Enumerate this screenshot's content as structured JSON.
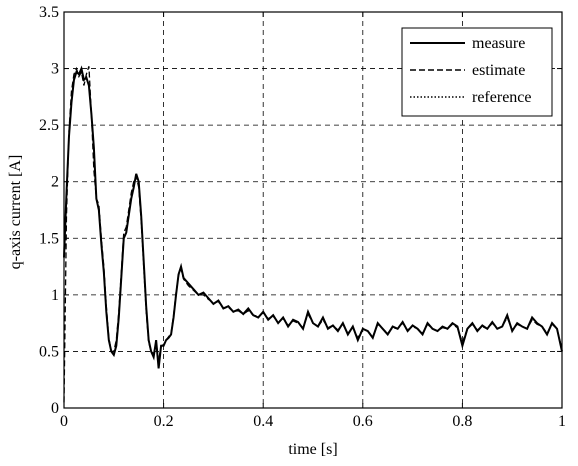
{
  "chart_data": {
    "type": "line",
    "title": "",
    "xlabel": "time [s]",
    "ylabel": "q-axis current [A]",
    "xlim": [
      0,
      1
    ],
    "ylim": [
      0,
      3.5
    ],
    "xticks": [
      0,
      0.2,
      0.4,
      0.6,
      0.8,
      1
    ],
    "xtick_labels": [
      "0",
      "0.2",
      "0.4",
      "0.6",
      "0.8",
      "1"
    ],
    "yticks": [
      0,
      0.5,
      1,
      1.5,
      2,
      2.5,
      3,
      3.5
    ],
    "ytick_labels": [
      "0",
      "0.5",
      "1",
      "1.5",
      "2",
      "2.5",
      "3",
      "3.5"
    ],
    "grid": true,
    "legend_position": "top-right",
    "series": [
      {
        "name": "measure",
        "style": "solid",
        "x": [
          0,
          0.005,
          0.01,
          0.015,
          0.02,
          0.025,
          0.03,
          0.035,
          0.04,
          0.045,
          0.05,
          0.055,
          0.06,
          0.065,
          0.07,
          0.075,
          0.08,
          0.085,
          0.09,
          0.095,
          0.1,
          0.105,
          0.11,
          0.115,
          0.12,
          0.125,
          0.13,
          0.135,
          0.14,
          0.145,
          0.15,
          0.155,
          0.16,
          0.165,
          0.17,
          0.175,
          0.18,
          0.185,
          0.19,
          0.195,
          0.2,
          0.205,
          0.21,
          0.215,
          0.22,
          0.225,
          0.23,
          0.235,
          0.24,
          0.25,
          0.26,
          0.27,
          0.28,
          0.29,
          0.3,
          0.31,
          0.32,
          0.33,
          0.34,
          0.35,
          0.36,
          0.37,
          0.38,
          0.39,
          0.4,
          0.41,
          0.42,
          0.43,
          0.44,
          0.45,
          0.46,
          0.47,
          0.48,
          0.49,
          0.5,
          0.51,
          0.52,
          0.53,
          0.54,
          0.55,
          0.56,
          0.57,
          0.58,
          0.59,
          0.6,
          0.61,
          0.62,
          0.63,
          0.64,
          0.65,
          0.66,
          0.67,
          0.68,
          0.69,
          0.7,
          0.71,
          0.72,
          0.73,
          0.74,
          0.75,
          0.76,
          0.77,
          0.78,
          0.79,
          0.8,
          0.81,
          0.82,
          0.83,
          0.84,
          0.85,
          0.86,
          0.87,
          0.88,
          0.89,
          0.9,
          0.91,
          0.92,
          0.93,
          0.94,
          0.95,
          0.96,
          0.97,
          0.98,
          0.99,
          1
        ],
        "y": [
          1.33,
          1.9,
          2.4,
          2.7,
          2.9,
          2.97,
          2.95,
          3.0,
          2.9,
          2.92,
          2.85,
          2.6,
          2.3,
          1.85,
          1.75,
          1.45,
          1.2,
          0.85,
          0.6,
          0.5,
          0.47,
          0.55,
          0.8,
          1.15,
          1.5,
          1.55,
          1.7,
          1.85,
          1.95,
          2.07,
          2.0,
          1.7,
          1.3,
          0.9,
          0.6,
          0.5,
          0.45,
          0.6,
          0.35,
          0.55,
          0.55,
          0.6,
          0.62,
          0.65,
          0.8,
          1.0,
          1.18,
          1.25,
          1.15,
          1.1,
          1.05,
          1.0,
          1.02,
          0.97,
          0.92,
          0.95,
          0.88,
          0.9,
          0.85,
          0.87,
          0.83,
          0.88,
          0.82,
          0.8,
          0.85,
          0.78,
          0.82,
          0.75,
          0.8,
          0.72,
          0.78,
          0.76,
          0.7,
          0.85,
          0.75,
          0.72,
          0.8,
          0.7,
          0.73,
          0.68,
          0.75,
          0.65,
          0.72,
          0.6,
          0.7,
          0.68,
          0.62,
          0.75,
          0.7,
          0.65,
          0.72,
          0.7,
          0.76,
          0.68,
          0.73,
          0.7,
          0.65,
          0.75,
          0.7,
          0.68,
          0.72,
          0.7,
          0.75,
          0.72,
          0.55,
          0.7,
          0.75,
          0.68,
          0.73,
          0.7,
          0.76,
          0.7,
          0.72,
          0.82,
          0.68,
          0.75,
          0.72,
          0.7,
          0.8,
          0.75,
          0.72,
          0.65,
          0.75,
          0.7,
          0.5
        ]
      },
      {
        "name": "estimate",
        "style": "dashed",
        "x": [
          0,
          0.005,
          0.01,
          0.015,
          0.02,
          0.025,
          0.03,
          0.035,
          0.04,
          0.045,
          0.05,
          0.055,
          0.06,
          0.065,
          0.07,
          0.075,
          0.08,
          0.085,
          0.09,
          0.095,
          0.1,
          0.105,
          0.11,
          0.115,
          0.12,
          0.125,
          0.13,
          0.135,
          0.14,
          0.145,
          0.15,
          0.155,
          0.16,
          0.165,
          0.17,
          0.175,
          0.18,
          0.185,
          0.19,
          0.195,
          0.2,
          0.205,
          0.21,
          0.215,
          0.22,
          0.225,
          0.23,
          0.235,
          0.24,
          0.25,
          0.26,
          0.27,
          0.28,
          0.29,
          0.3,
          0.31,
          0.32,
          0.33,
          0.34,
          0.35,
          0.36,
          0.37,
          0.38,
          0.39,
          0.4,
          0.41,
          0.42,
          0.43,
          0.44,
          0.45,
          0.46,
          0.47,
          0.48,
          0.49,
          0.5,
          0.51,
          0.52,
          0.53,
          0.54,
          0.55,
          0.56,
          0.57,
          0.58,
          0.59,
          0.6,
          0.61,
          0.62,
          0.63,
          0.64,
          0.65,
          0.66,
          0.67,
          0.68,
          0.69,
          0.7,
          0.71,
          0.72,
          0.73,
          0.74,
          0.75,
          0.76,
          0.77,
          0.78,
          0.79,
          0.8,
          0.81,
          0.82,
          0.83,
          0.84,
          0.85,
          0.86,
          0.87,
          0.88,
          0.89,
          0.9,
          0.91,
          0.92,
          0.93,
          0.94,
          0.95,
          0.96,
          0.97,
          0.98,
          0.99,
          1
        ],
        "y": [
          0.05,
          1.7,
          2.45,
          2.8,
          2.95,
          3.0,
          2.93,
          2.97,
          2.85,
          2.95,
          3.02,
          2.6,
          2.1,
          1.85,
          1.8,
          1.5,
          1.25,
          0.9,
          0.62,
          0.5,
          0.5,
          0.6,
          0.85,
          1.2,
          1.55,
          1.6,
          1.75,
          1.9,
          2.0,
          2.05,
          1.95,
          1.65,
          1.25,
          0.85,
          0.58,
          0.5,
          0.48,
          0.58,
          0.42,
          0.55,
          0.56,
          0.6,
          0.63,
          0.66,
          0.82,
          1.02,
          1.17,
          1.23,
          1.14,
          1.08,
          1.04,
          1.0,
          1.0,
          0.96,
          0.93,
          0.94,
          0.88,
          0.89,
          0.85,
          0.86,
          0.83,
          0.86,
          0.82,
          0.81,
          0.84,
          0.79,
          0.81,
          0.76,
          0.79,
          0.73,
          0.77,
          0.75,
          0.71,
          0.83,
          0.75,
          0.72,
          0.78,
          0.71,
          0.73,
          0.69,
          0.74,
          0.66,
          0.71,
          0.62,
          0.7,
          0.68,
          0.63,
          0.74,
          0.7,
          0.66,
          0.71,
          0.7,
          0.75,
          0.69,
          0.72,
          0.7,
          0.66,
          0.74,
          0.7,
          0.68,
          0.71,
          0.7,
          0.74,
          0.71,
          0.58,
          0.7,
          0.74,
          0.69,
          0.72,
          0.7,
          0.75,
          0.7,
          0.72,
          0.8,
          0.69,
          0.74,
          0.72,
          0.7,
          0.78,
          0.74,
          0.72,
          0.66,
          0.74,
          0.7,
          0.52
        ]
      },
      {
        "name": "reference",
        "style": "dotted",
        "x": [],
        "y": []
      }
    ]
  },
  "colors": {
    "line": "#000000",
    "grid": "#000000",
    "background": "#ffffff"
  }
}
